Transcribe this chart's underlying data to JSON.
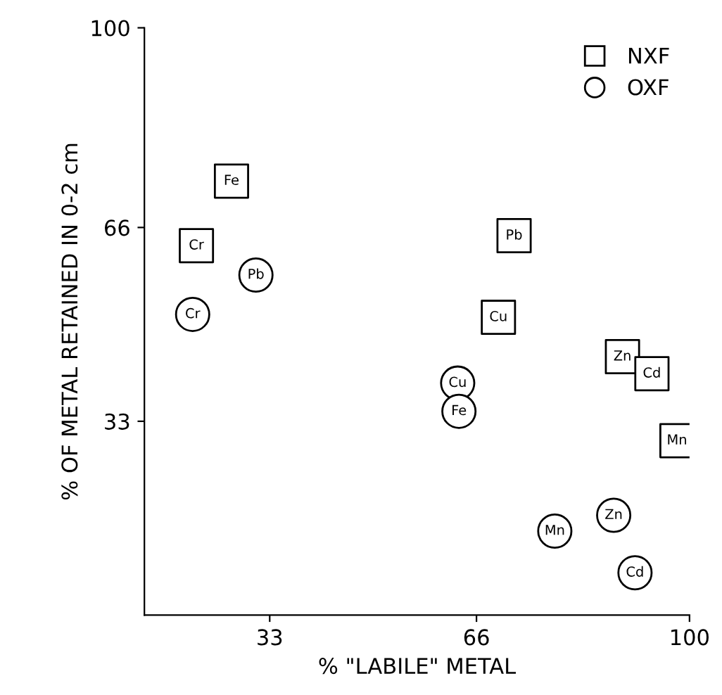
{
  "chart_data": {
    "type": "scatter",
    "xlabel": "% \"LABILE\" METAL",
    "ylabel": "% OF METAL RETAINED IN 0-2 cm",
    "xlim": [
      13,
      100
    ],
    "ylim": [
      0,
      100
    ],
    "xticks": [
      33,
      66,
      100
    ],
    "yticks": [
      33,
      66,
      100
    ],
    "grid": false,
    "legend": "top right",
    "series": [
      {
        "name": "NXF",
        "color": "#000000",
        "marker": "square",
        "x": [
          26.9,
          21.3,
          72.0,
          69.5,
          89.3,
          94.0,
          98.0
        ],
        "values": [
          73.9,
          62.9,
          64.6,
          50.7,
          44.0,
          41.1,
          29.7
        ],
        "value_labels": [
          "Fe",
          "Cr",
          "Pb",
          "Cu",
          "Zn",
          "Cd",
          "Mn"
        ]
      },
      {
        "name": "OXF",
        "color": "#000000",
        "marker": "circle",
        "x": [
          30.8,
          20.7,
          63.0,
          63.2,
          78.5,
          87.9,
          91.3
        ],
        "values": [
          57.9,
          51.2,
          39.5,
          34.7,
          14.3,
          17.0,
          7.2
        ],
        "value_labels": [
          "Pb",
          "Cr",
          "Cu",
          "Fe",
          "Mn",
          "Zn",
          "Cd"
        ]
      }
    ]
  }
}
